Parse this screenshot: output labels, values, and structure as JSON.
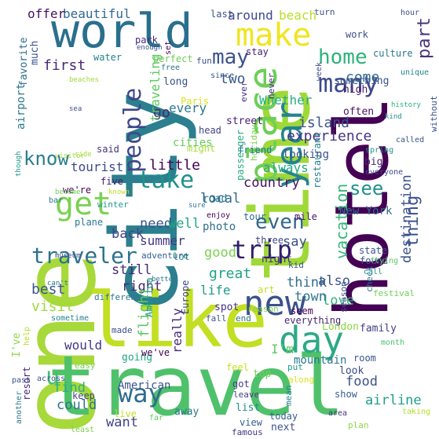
{
  "cloud": {
    "words": [
      {
        "text": "one",
        "color": "#a7d93a"
      },
      {
        "text": "travel",
        "color": "#4fc16b"
      },
      {
        "text": "city",
        "color": "#2b7f8e"
      },
      {
        "text": "like",
        "color": "#c2df23"
      },
      {
        "text": "time",
        "color": "#9fd938"
      },
      {
        "text": "hotel",
        "color": "#440154"
      },
      {
        "text": "world",
        "color": "#2a6f8e"
      },
      {
        "text": "new",
        "color": "#3b528b"
      },
      {
        "text": "day",
        "color": "#2ea885"
      },
      {
        "text": "place",
        "color": "#6ece58"
      },
      {
        "text": "make",
        "color": "#f0e51f"
      },
      {
        "text": "year",
        "color": "#25838e"
      },
      {
        "text": "get",
        "color": "#7ad151"
      },
      {
        "text": "traveler",
        "color": "#2c728e"
      },
      {
        "text": "trip",
        "color": "#2d1e6b"
      },
      {
        "text": "many",
        "color": "#3e4a89"
      },
      {
        "text": "people",
        "color": "#3f4889"
      },
      {
        "text": "way",
        "color": "#2f6c8e"
      },
      {
        "text": "take",
        "color": "#21908c"
      },
      {
        "text": "thing",
        "color": "#3b528b"
      },
      {
        "text": "part",
        "color": "#46337e"
      },
      {
        "text": "home",
        "color": "#2eb37c"
      },
      {
        "text": "even",
        "color": "#31688e"
      },
      {
        "text": "know",
        "color": "#287d8e"
      },
      {
        "text": "see",
        "color": "#21908c"
      },
      {
        "text": "vacation",
        "color": "#35b779"
      },
      {
        "text": "may",
        "color": "#3b528b"
      },
      {
        "text": "experience",
        "color": "#463480"
      },
      {
        "text": "u",
        "color": "#44bf70"
      },
      {
        "text": "beautiful",
        "color": "#31688e"
      },
      {
        "text": "offer",
        "color": "#471164"
      },
      {
        "text": "around",
        "color": "#3e4989"
      },
      {
        "text": "beach",
        "color": "#b8de29"
      },
      {
        "text": "first",
        "color": "#482878"
      },
      {
        "text": "island",
        "color": "#3b528b"
      },
      {
        "text": "destination",
        "color": "#3b528b"
      },
      {
        "text": "country",
        "color": "#471063"
      },
      {
        "text": "go",
        "color": "#482878"
      },
      {
        "text": "every",
        "color": "#2a788e"
      },
      {
        "text": "two",
        "color": "#38598c"
      },
      {
        "text": "come",
        "color": "#2f6c8e"
      },
      {
        "text": "tourist",
        "color": "#3e4989"
      },
      {
        "text": "little",
        "color": "#440154"
      },
      {
        "text": "local",
        "color": "#31688e"
      },
      {
        "text": "always",
        "color": "#22a884"
      },
      {
        "text": "Whether",
        "color": "#27ad81"
      },
      {
        "text": "traveling",
        "color": "#5ec962"
      },
      {
        "text": "cities",
        "color": "#65cb5e"
      },
      {
        "text": "great",
        "color": "#20a386"
      },
      {
        "text": "good",
        "color": "#7ad151"
      },
      {
        "text": "say",
        "color": "#3b528b"
      },
      {
        "text": "need",
        "color": "#3b528b"
      },
      {
        "text": "well",
        "color": "#22a884"
      },
      {
        "text": "summer",
        "color": "#443983"
      },
      {
        "text": "back",
        "color": "#414487"
      },
      {
        "text": "still",
        "color": "#472a7a"
      },
      {
        "text": "right",
        "color": "#482878"
      },
      {
        "text": "best",
        "color": "#39568c"
      },
      {
        "text": "visit",
        "color": "#9fda3a"
      },
      {
        "text": "life",
        "color": "#1f9a8a"
      },
      {
        "text": "think",
        "color": "#2e6e8e"
      },
      {
        "text": "love",
        "color": "#2eb37c"
      },
      {
        "text": "town",
        "color": "#2a788e"
      },
      {
        "text": "also",
        "color": "#3b528b"
      },
      {
        "text": "flight",
        "color": "#5ec962"
      },
      {
        "text": "really",
        "color": "#472c7a"
      },
      {
        "text": "would",
        "color": "#453781"
      },
      {
        "text": "find",
        "color": "#29af7f"
      },
      {
        "text": "could",
        "color": "#2c728e"
      },
      {
        "text": "want",
        "color": "#414487"
      },
      {
        "text": "American",
        "color": "#3b528b"
      },
      {
        "text": "food",
        "color": "#3b528b"
      },
      {
        "text": "airline",
        "color": "#1f9e89"
      },
      {
        "text": "I'm",
        "color": "#65cb5e"
      },
      {
        "text": "New York",
        "color": "#2f6c8e"
      },
      {
        "text": "London",
        "color": "#8bd646"
      },
      {
        "text": "family",
        "color": "#433e85"
      },
      {
        "text": "mountain",
        "color": "#2a788e"
      },
      {
        "text": "look",
        "color": "#3e4a89"
      },
      {
        "text": "show",
        "color": "#365c8d"
      },
      {
        "text": "next",
        "color": "#3b528b"
      },
      {
        "text": "today",
        "color": "#355f8d"
      },
      {
        "text": "list",
        "color": "#21918c"
      },
      {
        "text": "away",
        "color": "#2a788e"
      },
      {
        "text": "live",
        "color": "#c2df23"
      },
      {
        "text": "view",
        "color": "#355f8d"
      },
      {
        "text": "famous",
        "color": "#443a83"
      },
      {
        "text": "plan",
        "color": "#8fd744"
      },
      {
        "text": "far",
        "color": "#5ec962"
      },
      {
        "text": "area",
        "color": "#46307e"
      },
      {
        "text": "along",
        "color": "#d8e219"
      },
      {
        "text": "taking",
        "color": "#b5de2b"
      },
      {
        "text": "leave",
        "color": "#424086"
      },
      {
        "text": "top",
        "color": "#77d153"
      },
      {
        "text": "got",
        "color": "#433d84"
      },
      {
        "text": "feel",
        "color": "#c8e020"
      },
      {
        "text": "put",
        "color": "#1f9a8a"
      },
      {
        "text": "mean",
        "color": "#27808e"
      },
      {
        "text": "room",
        "color": "#3b528b"
      },
      {
        "text": "month",
        "color": "#4ac16d"
      },
      {
        "text": "seem",
        "color": "#440154"
      },
      {
        "text": "end",
        "color": "#2d708e"
      },
      {
        "text": "fall",
        "color": "#3b528b"
      },
      {
        "text": "spot",
        "color": "#46327e"
      },
      {
        "text": "reason",
        "color": "#7ad151"
      },
      {
        "text": "everything",
        "color": "#482576"
      },
      {
        "text": "festival",
        "color": "#6ece58"
      },
      {
        "text": "check",
        "color": "#2a788e"
      },
      {
        "text": "season",
        "color": "#3b528b"
      },
      {
        "text": "call",
        "color": "#20928c"
      },
      {
        "text": "art",
        "color": "#c0df25"
      },
      {
        "text": "kid",
        "color": "#3b528b"
      },
      {
        "text": "state",
        "color": "#3b528b"
      },
      {
        "text": "found",
        "color": "#3b528b"
      },
      {
        "text": "flying",
        "color": "#5ec962"
      },
      {
        "text": "night",
        "color": "#472f7d"
      },
      {
        "text": "three",
        "color": "#404588"
      },
      {
        "text": "photo",
        "color": "#2e6f8e"
      },
      {
        "text": "lot",
        "color": "#1f9a8a"
      },
      {
        "text": "adventure",
        "color": "#365d8d"
      },
      {
        "text": "mile",
        "color": "#481769"
      },
      {
        "text": "tour",
        "color": "#31688e"
      },
      {
        "text": "enjoy",
        "color": "#440154"
      },
      {
        "text": "road",
        "color": "#2a768e"
      },
      {
        "text": "better",
        "color": "#2a788e"
      },
      {
        "text": "restaurant",
        "color": "#26828e"
      },
      {
        "text": "looking",
        "color": "#3b528b"
      },
      {
        "text": "holiday",
        "color": "#7ad151"
      },
      {
        "text": "passenger",
        "color": "#27ad81"
      },
      {
        "text": "street",
        "color": "#482173"
      },
      {
        "text": "head",
        "color": "#414487"
      },
      {
        "text": "might",
        "color": "#a5db36"
      },
      {
        "text": "ever",
        "color": "#46307e"
      },
      {
        "text": "never",
        "color": "#482979"
      },
      {
        "text": "often",
        "color": "#471365"
      },
      {
        "text": "big",
        "color": "#482878"
      },
      {
        "text": "without",
        "color": "#3b528b"
      },
      {
        "text": "called",
        "color": "#3b528b"
      },
      {
        "text": "spring",
        "color": "#1f958b"
      },
      {
        "text": "everyone",
        "color": "#3e4c8a"
      },
      {
        "text": "friend",
        "color": "#2a788e"
      },
      {
        "text": "week",
        "color": "#3b528b"
      },
      {
        "text": "high",
        "color": "#481a6c"
      },
      {
        "text": "something",
        "color": "#3b528b"
      },
      {
        "text": "unique",
        "color": "#26828e"
      },
      {
        "text": "history",
        "color": "#27ad81"
      },
      {
        "text": "kind",
        "color": "#21908c"
      },
      {
        "text": "culture",
        "color": "#2a788e"
      },
      {
        "text": "work",
        "color": "#3b528b"
      },
      {
        "text": "hour",
        "color": "#3b528b"
      },
      {
        "text": "since",
        "color": "#3b528b"
      },
      {
        "text": "stay",
        "color": "#482173"
      },
      {
        "text": "fun",
        "color": "#3b528b"
      },
      {
        "text": "set",
        "color": "#440154"
      },
      {
        "text": "turn",
        "color": "#3b528b"
      },
      {
        "text": "last",
        "color": "#3b528b"
      },
      {
        "text": "park",
        "color": "#482878"
      },
      {
        "text": "perfect",
        "color": "#6ece58"
      },
      {
        "text": "free",
        "color": "#2a788e"
      },
      {
        "text": "enough",
        "color": "#3b528b"
      },
      {
        "text": "water",
        "color": "#26828e"
      },
      {
        "text": "long",
        "color": "#3b528b"
      },
      {
        "text": "Paris",
        "color": "#dde318"
      },
      {
        "text": "airport",
        "color": "#2a788e"
      },
      {
        "text": "favorite",
        "color": "#2f6c8e"
      },
      {
        "text": "much",
        "color": "#3b528b"
      },
      {
        "text": "beaches",
        "color": "#9fda3a"
      },
      {
        "text": "sea",
        "color": "#3b528b"
      },
      {
        "text": "said",
        "color": "#46327e"
      },
      {
        "text": "ride",
        "color": "#a5db36"
      },
      {
        "text": "visitor",
        "color": "#a5db36"
      },
      {
        "text": "though",
        "color": "#1f958b"
      },
      {
        "text": "five",
        "color": "#481a6c"
      },
      {
        "text": "we're",
        "color": "#440154"
      },
      {
        "text": "become",
        "color": "#6ece58"
      },
      {
        "text": "known",
        "color": "#c2df23"
      },
      {
        "text": "sure",
        "color": "#2a788e"
      },
      {
        "text": "bar",
        "color": "#2a788e"
      },
      {
        "text": "winter",
        "color": "#1f9a8a"
      },
      {
        "text": "plane",
        "color": "#2a788e"
      },
      {
        "text": "museum",
        "color": "#3b528b"
      },
      {
        "text": "can't",
        "color": "#2a788e"
      },
      {
        "text": "different",
        "color": "#2a788e"
      },
      {
        "text": "sometime",
        "color": "#26828e"
      },
      {
        "text": "made",
        "color": "#3b528b"
      },
      {
        "text": "America",
        "color": "#1f9a8a"
      },
      {
        "text": "Europe",
        "color": "#414487"
      },
      {
        "text": "going",
        "color": "#22a884"
      },
      {
        "text": "we've",
        "color": "#440154"
      },
      {
        "text": "I've",
        "color": "#8bd646"
      },
      {
        "text": "help",
        "color": "#b8de29"
      },
      {
        "text": "easy",
        "color": "#7ad151"
      },
      {
        "text": "past",
        "color": "#3b528b"
      },
      {
        "text": "across",
        "color": "#3b528b"
      },
      {
        "text": "keep",
        "color": "#414487"
      },
      {
        "text": "resort",
        "color": "#482878"
      },
      {
        "text": "another",
        "color": "#2a788e"
      },
      {
        "text": "least",
        "color": "#7ad151"
      }
    ]
  }
}
